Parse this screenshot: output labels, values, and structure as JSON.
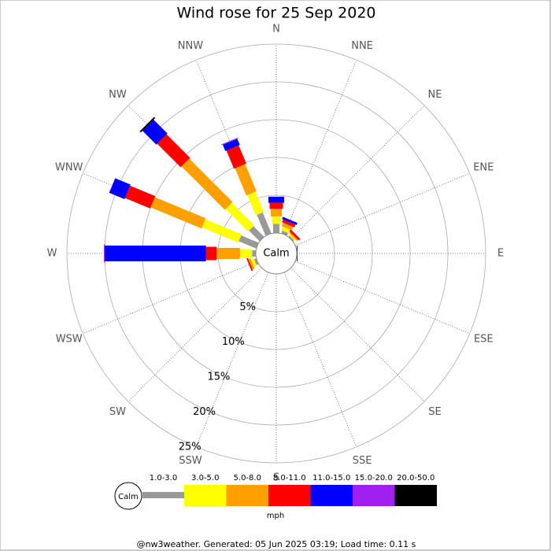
{
  "chart_data": {
    "type": "windrose",
    "title": "Wind rose for 25 Sep 2020",
    "categories": [
      "N",
      "NNE",
      "NE",
      "ENE",
      "E",
      "ESE",
      "SE",
      "SSE",
      "S",
      "SSW",
      "SW",
      "WSW",
      "W",
      "WNW",
      "NW",
      "NNW"
    ],
    "center_label": "Calm",
    "ylim": [
      0,
      25
    ],
    "yticks": [
      {
        "value": 5,
        "label": "5%"
      },
      {
        "value": 10,
        "label": "10%"
      },
      {
        "value": 15,
        "label": "15%"
      },
      {
        "value": 20,
        "label": "20%"
      },
      {
        "value": 25,
        "label": "25%"
      }
    ],
    "series": [
      {
        "name": "1.0-3.0",
        "color": "#999999",
        "values": [
          1.2,
          0.4,
          0.2,
          0,
          0,
          0,
          0,
          0,
          0,
          0,
          0,
          0.3,
          0.5,
          2.5,
          2.0,
          3.0
        ]
      },
      {
        "name": "3.0-5.0",
        "color": "#ffff00",
        "values": [
          1.0,
          0.5,
          0.2,
          0,
          0,
          0,
          0,
          0,
          0,
          0,
          0,
          0.4,
          1.6,
          5.2,
          4.2,
          2.9
        ]
      },
      {
        "name": "5.0-8.0",
        "color": "#ff9f00",
        "values": [
          1.0,
          0.5,
          0.2,
          0,
          0,
          0,
          0,
          0,
          0,
          0,
          0,
          0.3,
          3.1,
          7.3,
          8.1,
          3.9
        ]
      },
      {
        "name": "8.0-11.0",
        "color": "#ff0000",
        "values": [
          0.8,
          0.4,
          0.3,
          0,
          0,
          0,
          0,
          0,
          0,
          0,
          0,
          0.2,
          1.4,
          3.6,
          4.4,
          2.6
        ]
      },
      {
        "name": "11.0-15.0",
        "color": "#0000ff",
        "values": [
          0.8,
          0.3,
          0,
          0,
          0.1,
          0,
          0,
          0,
          0,
          0,
          0,
          0,
          13.4,
          2.2,
          2.6,
          0.9
        ]
      },
      {
        "name": "15.0-20.0",
        "color": "#a020f0",
        "values": [
          0,
          0,
          0,
          0,
          0,
          0,
          0,
          0,
          0,
          0,
          0,
          0,
          0.1,
          0,
          0,
          0.1
        ]
      },
      {
        "name": "20.0-50.0",
        "color": "#000000",
        "values": [
          0,
          0,
          0,
          0,
          0,
          0,
          0,
          0,
          0,
          0,
          0,
          0,
          0,
          0,
          0.2,
          0
        ]
      }
    ],
    "legend_unit": "mph",
    "footer": "@nw3weather. Generated: 05 Jun 2025 03:19; Load time: 0.11 s"
  }
}
